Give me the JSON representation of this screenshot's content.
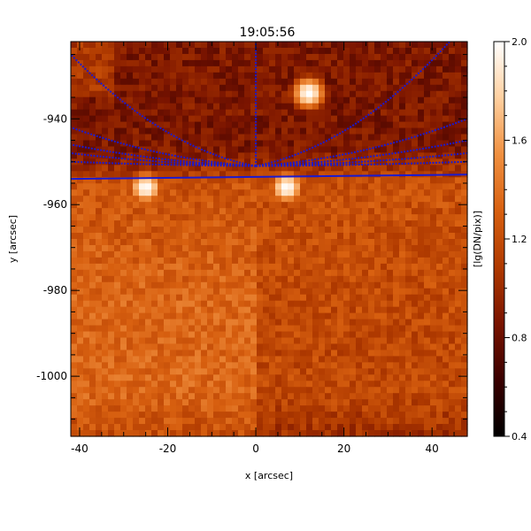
{
  "chart_data": {
    "type": "heatmap",
    "title": "19:05:56",
    "xlabel": "x [arcsec]",
    "ylabel": "y [arcsec]",
    "colorbar_label": "[lg(DN/pix)]",
    "xlim": [
      -42,
      48
    ],
    "ylim": [
      -1014,
      -922
    ],
    "x_ticks": [
      -40,
      -20,
      0,
      20,
      40
    ],
    "y_ticks": [
      -940,
      -960,
      -980,
      -1000
    ],
    "color_range": [
      0.4,
      2.0
    ],
    "color_ticks": [
      0.4,
      0.8,
      1.2,
      1.6,
      2.0
    ],
    "colormap": [
      "#000000",
      "#3a0000",
      "#7a1400",
      "#b03a00",
      "#d86010",
      "#f09040",
      "#ffd0a0",
      "#ffffff"
    ],
    "limb_y_left": -954.0,
    "limb_y_right": -953.0,
    "fan_origin": {
      "x": 0,
      "y": -951
    },
    "fan_color": "#1a1ad0",
    "fan_endpoints": [
      {
        "x": -42,
        "y": -925
      },
      {
        "x": -42,
        "y": -942
      },
      {
        "x": -42,
        "y": -946
      },
      {
        "x": -42,
        "y": -948
      },
      {
        "x": -42,
        "y": -950
      },
      {
        "x": 0,
        "y": -922
      },
      {
        "x": 44,
        "y": -922
      },
      {
        "x": 48,
        "y": -940
      },
      {
        "x": 48,
        "y": -945
      },
      {
        "x": 48,
        "y": -948
      },
      {
        "x": 48,
        "y": -950
      }
    ],
    "bright_features": [
      {
        "x": 12,
        "y": -934,
        "peak": 2.0
      },
      {
        "x": -25,
        "y": -956,
        "peak": 2.0
      },
      {
        "x": 7,
        "y": -956,
        "peak": 2.0
      }
    ]
  }
}
